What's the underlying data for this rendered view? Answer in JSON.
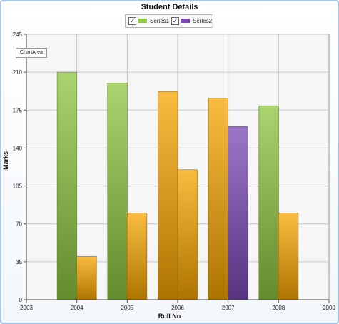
{
  "chart_data": {
    "type": "bar",
    "title": "Student Details",
    "xlabel": "Roll No",
    "ylabel": "Marks",
    "xlim": [
      2003,
      2009
    ],
    "ylim": [
      0,
      245
    ],
    "x_ticks": [
      "2003",
      "2004",
      "2005",
      "2006",
      "2007",
      "2008",
      "2009"
    ],
    "y_ticks": [
      "0",
      "35",
      "70",
      "105",
      "140",
      "175",
      "210",
      "245"
    ],
    "grid": true,
    "legend_position": "top-center",
    "bars": [
      {
        "x": 2004,
        "offset": "left",
        "value": 210,
        "color": "#8fc63f"
      },
      {
        "x": 2004,
        "offset": "right",
        "value": 40,
        "color": "#f7a600"
      },
      {
        "x": 2005,
        "offset": "left",
        "value": 200,
        "color": "#8fc63f"
      },
      {
        "x": 2005,
        "offset": "right",
        "value": 80,
        "color": "#f7a600"
      },
      {
        "x": 2006,
        "offset": "left",
        "value": 192,
        "color": "#f7a600"
      },
      {
        "x": 2006,
        "offset": "right",
        "value": 120,
        "color": "#f7a600"
      },
      {
        "x": 2007,
        "offset": "left",
        "value": 186,
        "color": "#f7a600"
      },
      {
        "x": 2007,
        "offset": "right",
        "value": 160,
        "color": "#7b4ab5"
      },
      {
        "x": 2008,
        "offset": "left",
        "value": 179,
        "color": "#8fc63f"
      },
      {
        "x": 2008,
        "offset": "right",
        "value": 80,
        "color": "#f7a600"
      }
    ],
    "legend": [
      {
        "name": "Series1",
        "color": "#8fc63f",
        "checked": true
      },
      {
        "name": "Series2",
        "color": "#7b4ab5",
        "checked": true
      }
    ]
  },
  "chart_area_label": "ChartArea",
  "colors": {
    "green": "#8fc63f",
    "orange": "#f7a600",
    "purple": "#7b4ab5",
    "grid": "#c8c8c8"
  }
}
